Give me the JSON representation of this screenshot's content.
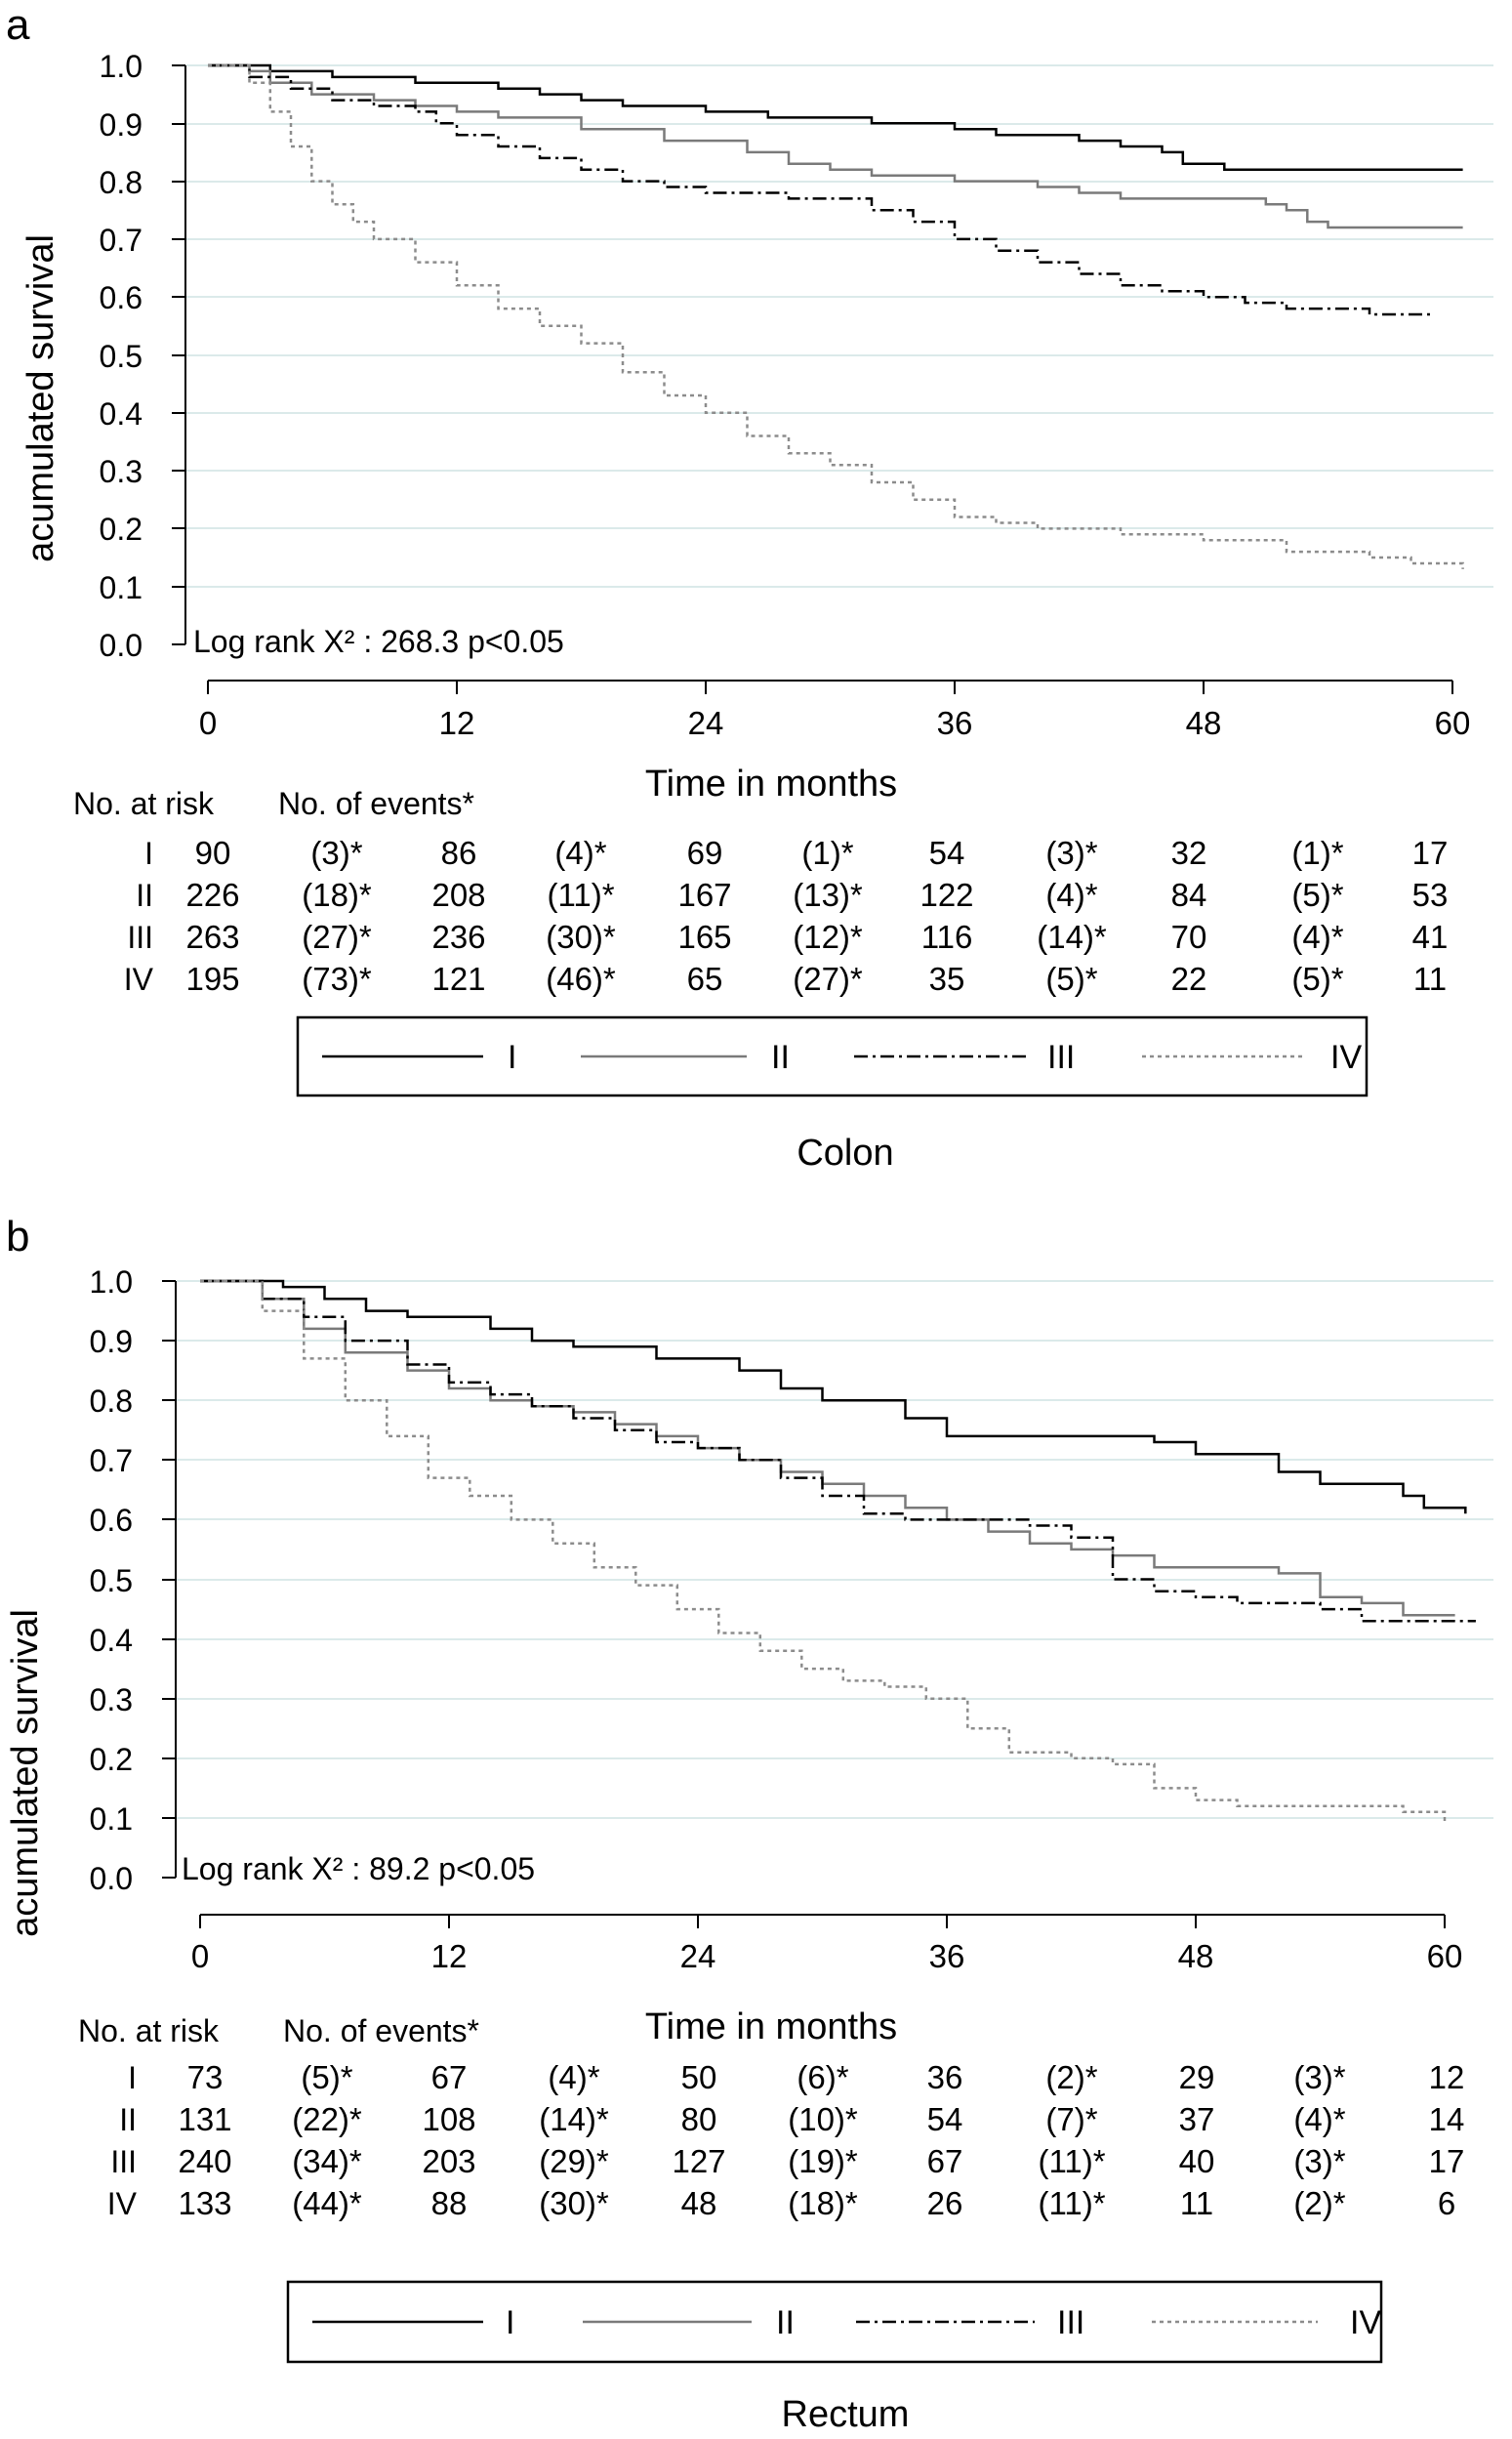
{
  "chart_data": [
    {
      "type": "line",
      "panel_letter": "a",
      "caption": "Colon",
      "ylabel": "acumulated survival",
      "xlabel": "Time in months",
      "ylim": [
        0,
        1
      ],
      "xlim": [
        0,
        62
      ],
      "yticks": [
        "0.0",
        "0.1",
        "0.2",
        "0.3",
        "0.4",
        "0.5",
        "0.6",
        "0.7",
        "0.8",
        "0.9",
        "1.0"
      ],
      "xticks": [
        "0",
        "12",
        "24",
        "36",
        "48",
        "60"
      ],
      "grid": "horizontal",
      "annotation": "Log rank X² : 268.3   p<0.05",
      "series": [
        {
          "name": "I",
          "color": "#000000",
          "dash": "",
          "points": [
            [
              0,
              1.0
            ],
            [
              3,
              0.99
            ],
            [
              6,
              0.98
            ],
            [
              10,
              0.97
            ],
            [
              14,
              0.96
            ],
            [
              16,
              0.95
            ],
            [
              18,
              0.94
            ],
            [
              20,
              0.93
            ],
            [
              24,
              0.92
            ],
            [
              27,
              0.91
            ],
            [
              32,
              0.9
            ],
            [
              36,
              0.89
            ],
            [
              38,
              0.88
            ],
            [
              42,
              0.87
            ],
            [
              44,
              0.86
            ],
            [
              46,
              0.85
            ],
            [
              47,
              0.83
            ],
            [
              49,
              0.82
            ],
            [
              55,
              0.82
            ],
            [
              60.5,
              0.82
            ]
          ]
        },
        {
          "name": "II",
          "color": "#7a7a7a",
          "dash": "",
          "points": [
            [
              0,
              1.0
            ],
            [
              2,
              0.99
            ],
            [
              3,
              0.97
            ],
            [
              5,
              0.95
            ],
            [
              8,
              0.94
            ],
            [
              10,
              0.93
            ],
            [
              12,
              0.92
            ],
            [
              14,
              0.91
            ],
            [
              18,
              0.89
            ],
            [
              22,
              0.87
            ],
            [
              26,
              0.85
            ],
            [
              28,
              0.83
            ],
            [
              30,
              0.82
            ],
            [
              32,
              0.81
            ],
            [
              36,
              0.8
            ],
            [
              40,
              0.79
            ],
            [
              42,
              0.78
            ],
            [
              44,
              0.77
            ],
            [
              48,
              0.77
            ],
            [
              51,
              0.76
            ],
            [
              52,
              0.75
            ],
            [
              53,
              0.73
            ],
            [
              54,
              0.72
            ],
            [
              60.5,
              0.72
            ]
          ]
        },
        {
          "name": "III",
          "color": "#000000",
          "dash": "14,5,3,5",
          "points": [
            [
              0,
              1.0
            ],
            [
              2,
              0.98
            ],
            [
              4,
              0.96
            ],
            [
              6,
              0.94
            ],
            [
              8,
              0.93
            ],
            [
              10,
              0.92
            ],
            [
              11,
              0.9
            ],
            [
              12,
              0.88
            ],
            [
              14,
              0.86
            ],
            [
              16,
              0.84
            ],
            [
              18,
              0.82
            ],
            [
              20,
              0.8
            ],
            [
              22,
              0.79
            ],
            [
              24,
              0.78
            ],
            [
              28,
              0.77
            ],
            [
              32,
              0.75
            ],
            [
              34,
              0.73
            ],
            [
              36,
              0.7
            ],
            [
              38,
              0.68
            ],
            [
              40,
              0.66
            ],
            [
              42,
              0.64
            ],
            [
              44,
              0.62
            ],
            [
              46,
              0.61
            ],
            [
              48,
              0.6
            ],
            [
              50,
              0.59
            ],
            [
              52,
              0.58
            ],
            [
              54,
              0.58
            ],
            [
              56,
              0.57
            ],
            [
              59,
              0.57
            ]
          ]
        },
        {
          "name": "IV",
          "color": "#8c8c8c",
          "dash": "4,4",
          "points": [
            [
              0,
              1.0
            ],
            [
              2,
              0.97
            ],
            [
              3,
              0.92
            ],
            [
              4,
              0.86
            ],
            [
              5,
              0.8
            ],
            [
              6,
              0.76
            ],
            [
              7,
              0.73
            ],
            [
              8,
              0.7
            ],
            [
              10,
              0.66
            ],
            [
              12,
              0.62
            ],
            [
              14,
              0.58
            ],
            [
              16,
              0.55
            ],
            [
              18,
              0.52
            ],
            [
              20,
              0.47
            ],
            [
              22,
              0.43
            ],
            [
              24,
              0.4
            ],
            [
              26,
              0.36
            ],
            [
              28,
              0.33
            ],
            [
              30,
              0.31
            ],
            [
              32,
              0.28
            ],
            [
              34,
              0.25
            ],
            [
              36,
              0.22
            ],
            [
              38,
              0.21
            ],
            [
              40,
              0.2
            ],
            [
              44,
              0.19
            ],
            [
              48,
              0.18
            ],
            [
              52,
              0.16
            ],
            [
              56,
              0.15
            ],
            [
              58,
              0.14
            ],
            [
              60.5,
              0.13
            ]
          ]
        }
      ]
    },
    {
      "type": "line",
      "panel_letter": "b",
      "caption": "Rectum",
      "ylabel": "acumulated survival",
      "xlabel": "Time in months",
      "ylim": [
        0,
        1
      ],
      "xlim": [
        0,
        62
      ],
      "yticks": [
        "0.0",
        "0.1",
        "0.2",
        "0.3",
        "0.4",
        "0.5",
        "0.6",
        "0.7",
        "0.8",
        "0.9",
        "1.0"
      ],
      "xticks": [
        "0",
        "12",
        "24",
        "36",
        "48",
        "60"
      ],
      "grid": "horizontal",
      "annotation": "Log rank X² : 89.2   p<0.05",
      "series": [
        {
          "name": "I",
          "color": "#000000",
          "dash": "",
          "points": [
            [
              0,
              1.0
            ],
            [
              4,
              0.99
            ],
            [
              6,
              0.97
            ],
            [
              8,
              0.95
            ],
            [
              10,
              0.94
            ],
            [
              14,
              0.92
            ],
            [
              16,
              0.9
            ],
            [
              18,
              0.89
            ],
            [
              22,
              0.87
            ],
            [
              26,
              0.85
            ],
            [
              28,
              0.82
            ],
            [
              30,
              0.8
            ],
            [
              34,
              0.77
            ],
            [
              36,
              0.74
            ],
            [
              40,
              0.74
            ],
            [
              44,
              0.74
            ],
            [
              46,
              0.73
            ],
            [
              48,
              0.71
            ],
            [
              52,
              0.68
            ],
            [
              54,
              0.66
            ],
            [
              58,
              0.64
            ],
            [
              59,
              0.62
            ],
            [
              61,
              0.61
            ]
          ]
        },
        {
          "name": "II",
          "color": "#7a7a7a",
          "dash": "",
          "points": [
            [
              0,
              1.0
            ],
            [
              3,
              0.97
            ],
            [
              5,
              0.92
            ],
            [
              7,
              0.88
            ],
            [
              10,
              0.85
            ],
            [
              12,
              0.82
            ],
            [
              14,
              0.8
            ],
            [
              16,
              0.79
            ],
            [
              18,
              0.78
            ],
            [
              20,
              0.76
            ],
            [
              22,
              0.74
            ],
            [
              24,
              0.72
            ],
            [
              26,
              0.7
            ],
            [
              28,
              0.68
            ],
            [
              30,
              0.66
            ],
            [
              32,
              0.64
            ],
            [
              34,
              0.62
            ],
            [
              36,
              0.6
            ],
            [
              38,
              0.58
            ],
            [
              40,
              0.56
            ],
            [
              42,
              0.55
            ],
            [
              44,
              0.54
            ],
            [
              46,
              0.52
            ],
            [
              48,
              0.52
            ],
            [
              52,
              0.51
            ],
            [
              54,
              0.47
            ],
            [
              56,
              0.46
            ],
            [
              58,
              0.44
            ],
            [
              60.5,
              0.44
            ]
          ]
        },
        {
          "name": "III",
          "color": "#000000",
          "dash": "14,5,3,5",
          "points": [
            [
              0,
              1.0
            ],
            [
              3,
              0.97
            ],
            [
              5,
              0.94
            ],
            [
              7,
              0.9
            ],
            [
              10,
              0.86
            ],
            [
              12,
              0.83
            ],
            [
              14,
              0.81
            ],
            [
              16,
              0.79
            ],
            [
              18,
              0.77
            ],
            [
              20,
              0.75
            ],
            [
              22,
              0.73
            ],
            [
              24,
              0.72
            ],
            [
              26,
              0.7
            ],
            [
              28,
              0.67
            ],
            [
              30,
              0.64
            ],
            [
              32,
              0.61
            ],
            [
              34,
              0.6
            ],
            [
              36,
              0.6
            ],
            [
              40,
              0.59
            ],
            [
              42,
              0.57
            ],
            [
              44,
              0.5
            ],
            [
              46,
              0.48
            ],
            [
              48,
              0.47
            ],
            [
              50,
              0.46
            ],
            [
              54,
              0.45
            ],
            [
              56,
              0.43
            ],
            [
              61.5,
              0.43
            ]
          ]
        },
        {
          "name": "IV",
          "color": "#8c8c8c",
          "dash": "4,4",
          "points": [
            [
              0,
              1.0
            ],
            [
              3,
              0.95
            ],
            [
              5,
              0.87
            ],
            [
              7,
              0.8
            ],
            [
              9,
              0.74
            ],
            [
              11,
              0.67
            ],
            [
              13,
              0.64
            ],
            [
              15,
              0.6
            ],
            [
              17,
              0.56
            ],
            [
              19,
              0.52
            ],
            [
              21,
              0.49
            ],
            [
              23,
              0.45
            ],
            [
              25,
              0.41
            ],
            [
              27,
              0.38
            ],
            [
              29,
              0.35
            ],
            [
              31,
              0.33
            ],
            [
              33,
              0.32
            ],
            [
              35,
              0.3
            ],
            [
              37,
              0.25
            ],
            [
              39,
              0.21
            ],
            [
              42,
              0.2
            ],
            [
              44,
              0.19
            ],
            [
              46,
              0.15
            ],
            [
              48,
              0.13
            ],
            [
              50,
              0.12
            ],
            [
              56,
              0.12
            ],
            [
              58,
              0.11
            ],
            [
              60,
              0.09
            ]
          ]
        }
      ]
    }
  ],
  "risk_tables": [
    {
      "header_at_risk": "No. at risk",
      "header_events": "No. of events*",
      "rows": [
        {
          "label": "I",
          "cells": [
            "90",
            "(3)*",
            "86",
            "(4)*",
            "69",
            "(1)*",
            "54",
            "(3)*",
            "32",
            "(1)*",
            "17"
          ]
        },
        {
          "label": "II",
          "cells": [
            "226",
            "(18)*",
            "208",
            "(11)*",
            "167",
            "(13)*",
            "122",
            "(4)*",
            "84",
            "(5)*",
            "53"
          ]
        },
        {
          "label": "III",
          "cells": [
            "263",
            "(27)*",
            "236",
            "(30)*",
            "165",
            "(12)*",
            "116",
            "(14)*",
            "70",
            "(4)*",
            "41"
          ]
        },
        {
          "label": "IV",
          "cells": [
            "195",
            "(73)*",
            "121",
            "(46)*",
            "65",
            "(27)*",
            "35",
            "(5)*",
            "22",
            "(5)*",
            "11"
          ]
        }
      ]
    },
    {
      "header_at_risk": "No. at risk",
      "header_events": "No. of events*",
      "rows": [
        {
          "label": "I",
          "cells": [
            "73",
            "(5)*",
            "67",
            "(4)*",
            "50",
            "(6)*",
            "36",
            "(2)*",
            "29",
            "(3)*",
            "12"
          ]
        },
        {
          "label": "II",
          "cells": [
            "131",
            "(22)*",
            "108",
            "(14)*",
            "80",
            "(10)*",
            "54",
            "(7)*",
            "37",
            "(4)*",
            "14"
          ]
        },
        {
          "label": "III",
          "cells": [
            "240",
            "(34)*",
            "203",
            "(29)*",
            "127",
            "(19)*",
            "67",
            "(11)*",
            "40",
            "(3)*",
            "17"
          ]
        },
        {
          "label": "IV",
          "cells": [
            "133",
            "(44)*",
            "88",
            "(30)*",
            "48",
            "(18)*",
            "26",
            "(11)*",
            "11",
            "(2)*",
            "6"
          ]
        }
      ]
    }
  ]
}
